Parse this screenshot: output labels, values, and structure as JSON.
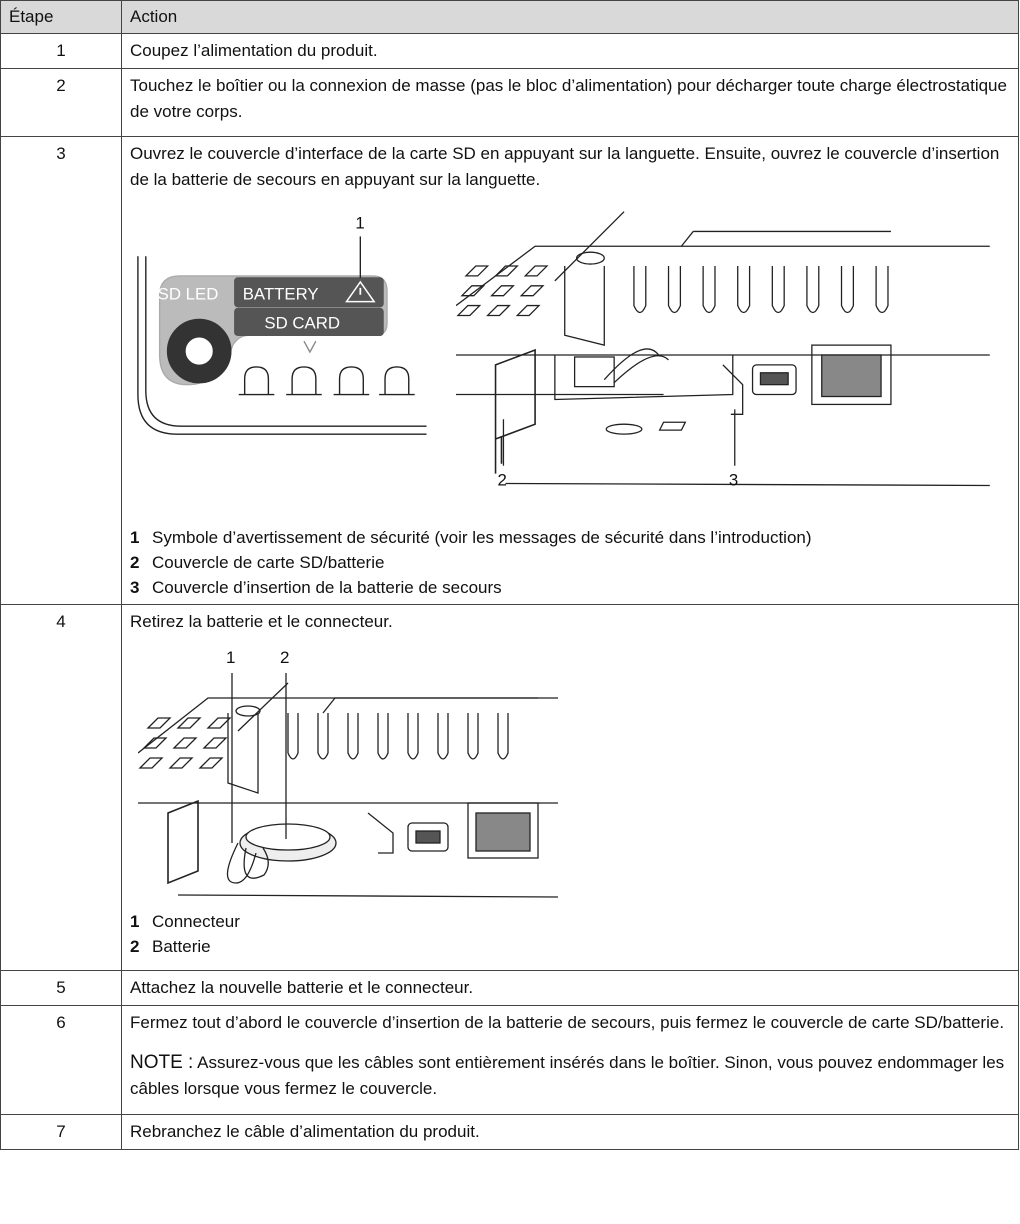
{
  "table": {
    "header": [
      "Étape",
      "Action"
    ],
    "rows": [
      {
        "step": "1",
        "text": "Coupez l’alimentation du produit."
      },
      {
        "step": "2",
        "text": "Touchez le boîtier ou la connexion de masse (pas le bloc d’alimentation) pour décharger toute charge électrostatique de votre corps."
      },
      {
        "step": "3",
        "text": "Ouvrez le couvercle d’interface de la carte SD en appuyant sur la languette. Ensuite, ouvrez le couvercle d’insertion de la batterie de secours en appuyant sur la languette.",
        "figure_a": {
          "labels": [
            "SD LED",
            "BATTERY",
            "SD CARD"
          ],
          "callouts": [
            "1"
          ]
        },
        "figure_b": {
          "callouts": [
            "2",
            "3"
          ]
        },
        "legend": [
          {
            "number": "1",
            "text": "Symbole d’avertissement de sécurité (voir les messages de sécurité dans l’introduction)"
          },
          {
            "number": "2",
            "text": "Couvercle de carte SD/batterie"
          },
          {
            "number": "3",
            "text": "Couvercle d’insertion de la batterie de secours"
          }
        ]
      },
      {
        "step": "4",
        "text": "Retirez la batterie et le connecteur.",
        "figure": {
          "callouts": [
            "1",
            "2"
          ]
        },
        "legend": [
          {
            "number": "1",
            "text": "Connecteur"
          },
          {
            "number": "2",
            "text": "Batterie"
          }
        ]
      },
      {
        "step": "5",
        "text": "Attachez la nouvelle batterie et le connecteur."
      },
      {
        "step": "6",
        "text": "Fermez tout d’abord le couvercle d’insertion de la batterie de secours, puis fermez le couvercle de carte SD/batterie.",
        "note": {
          "label": "NOTE :",
          "text": "Assurez-vous que les câbles sont entièrement insérés dans le boîtier. Sinon, vous pouvez endommager les câbles lorsque vous fermez le couvercle."
        }
      },
      {
        "step": "7",
        "text": "Rebranchez le câble d’alimentation du produit."
      }
    ]
  }
}
